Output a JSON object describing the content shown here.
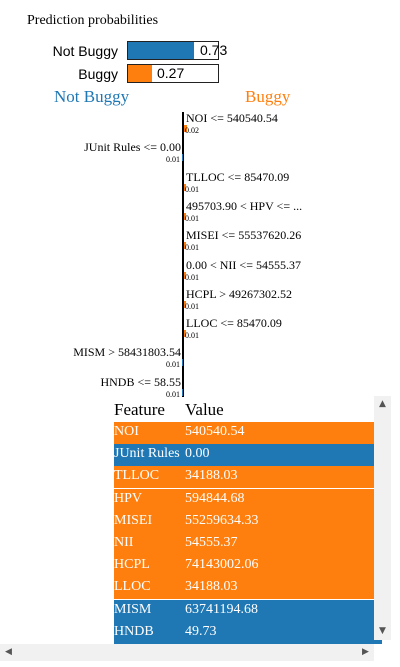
{
  "title": "Prediction probabilities",
  "probabilities": [
    {
      "label": "Not Buggy",
      "value_text": "0.73",
      "fraction": 0.73,
      "color": "#1f77b4"
    },
    {
      "label": "Buggy",
      "value_text": "0.27",
      "fraction": 0.27,
      "color": "#ff7f0e"
    }
  ],
  "class_headers": {
    "negative": "Not Buggy",
    "positive": "Buggy"
  },
  "colors": {
    "negative": "#1f77b4",
    "positive": "#ff7f0e"
  },
  "explanation": [
    {
      "feature": "NOI <= 540540.54",
      "weight": "0.02",
      "side": "positive"
    },
    {
      "feature": "JUnit Rules <= 0.00",
      "weight": "0.01",
      "side": "negative"
    },
    {
      "feature": "TLLOC <= 85470.09",
      "weight": "0.01",
      "side": "positive"
    },
    {
      "feature": "495703.90 < HPV <= ...",
      "weight": "0.01",
      "side": "positive"
    },
    {
      "feature": "MISEI <= 55537620.26",
      "weight": "0.01",
      "side": "positive"
    },
    {
      "feature": "0.00 < NII <= 54555.37",
      "weight": "0.01",
      "side": "positive"
    },
    {
      "feature": "HCPL > 49267302.52",
      "weight": "0.01",
      "side": "positive"
    },
    {
      "feature": "LLOC <= 85470.09",
      "weight": "0.01",
      "side": "positive"
    },
    {
      "feature": "MISM > 58431803.54",
      "weight": "0.01",
      "side": "negative"
    },
    {
      "feature": "HNDB <= 58.55",
      "weight": "0.01",
      "side": "negative"
    }
  ],
  "table": {
    "headers": [
      "Feature",
      "Value"
    ],
    "rows": [
      {
        "feature": "NOI",
        "value": "540540.54",
        "side": "positive"
      },
      {
        "feature": "JUnit Rules",
        "value": "0.00",
        "side": "negative"
      },
      {
        "feature": "TLLOC",
        "value": "34188.03",
        "side": "positive"
      },
      {
        "feature": "HPV",
        "value": "594844.68",
        "side": "positive"
      },
      {
        "feature": "MISEI",
        "value": "55259634.33",
        "side": "positive"
      },
      {
        "feature": "NII",
        "value": "54555.37",
        "side": "positive"
      },
      {
        "feature": "HCPL",
        "value": "74143002.06",
        "side": "positive"
      },
      {
        "feature": "LLOC",
        "value": "34188.03",
        "side": "positive"
      },
      {
        "feature": "MISM",
        "value": "63741194.68",
        "side": "negative"
      },
      {
        "feature": "HNDB",
        "value": "49.73",
        "side": "negative"
      }
    ]
  },
  "scrollbars": {
    "up": "▲",
    "down": "▼",
    "left": "◀",
    "right": "▶"
  }
}
